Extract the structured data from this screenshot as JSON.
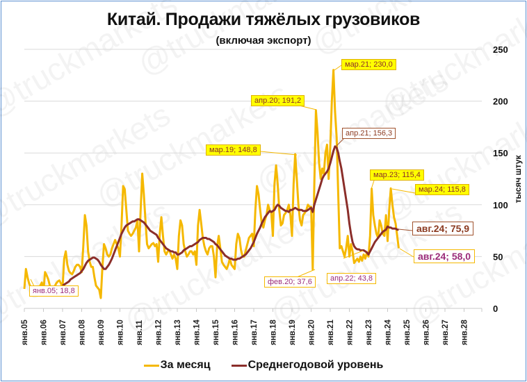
{
  "title": "Китай. Продажи тяжёлых грузовиков",
  "subtitle": "(включая экспорт)",
  "y_axis_title": "тысяч штук",
  "legend": [
    {
      "label": "За месяц",
      "color": "#f5b800"
    },
    {
      "label": "Среднегодовой уровень",
      "color": "#8b2e2a"
    }
  ],
  "watermark": "@truckmarkets",
  "annotations": {
    "jan05": "янв.05; 18,8",
    "feb20": "фев.20; 37,6",
    "mar19": "мар.19; 148,8",
    "apr20": "апр.20; 191,2",
    "mar21": "мар.21; 230,0",
    "apr21": "апр.21; 156,3",
    "apr22": "апр.22; 43,8",
    "mar23": "мар.23; 115,4",
    "mar24": "мар.24; 115,8",
    "aug24_avg": "авг.24; 75,9",
    "aug24_month": "авг.24; 58,0"
  },
  "chart_data": {
    "type": "line",
    "title": "Китай. Продажи тяжёлых грузовиков",
    "subtitle": "(включая экспорт)",
    "xlabel": "",
    "ylabel": "тысяч штук",
    "ylim": [
      0,
      250
    ],
    "yticks": [
      0,
      50,
      100,
      150,
      200,
      250
    ],
    "y_axis_position": "right",
    "grid": true,
    "legend_position": "bottom",
    "x_start": "янв.05",
    "x_ticks": [
      "янв.05",
      "янв.06",
      "янв.07",
      "янв.08",
      "янв.09",
      "янв.10",
      "янв.11",
      "янв.12",
      "янв.13",
      "янв.14",
      "янв.15",
      "янв.16",
      "янв.17",
      "янв.18",
      "янв.19",
      "янв.20",
      "янв.21",
      "янв.22",
      "янв.23",
      "янв.24",
      "янв.25",
      "янв.26",
      "янв.27",
      "янв.28"
    ],
    "series": [
      {
        "name": "За месяц",
        "color": "#f5b800",
        "frequency": "monthly",
        "start": "2005-01",
        "values": [
          18.8,
          38,
          30,
          24,
          20,
          18,
          17,
          16,
          18,
          20,
          22,
          25,
          16,
          35,
          32,
          28,
          22,
          20,
          20,
          21,
          24,
          26,
          27,
          24,
          20,
          48,
          55,
          42,
          36,
          34,
          33,
          36,
          40,
          42,
          42,
          40,
          35,
          60,
          90,
          80,
          55,
          45,
          40,
          40,
          30,
          22,
          20,
          18,
          10,
          40,
          62,
          58,
          52,
          50,
          52,
          58,
          62,
          66,
          62,
          58,
          50,
          80,
          118,
          115,
          95,
          75,
          72,
          70,
          72,
          75,
          78,
          85,
          55,
          95,
          130,
          110,
          85,
          62,
          58,
          60,
          62,
          63,
          60,
          62,
          45,
          72,
          88,
          70,
          55,
          52,
          55,
          56,
          52,
          48,
          52,
          48,
          38,
          70,
          85,
          80,
          62,
          55,
          50,
          52,
          55,
          55,
          52,
          55,
          42,
          80,
          95,
          82,
          68,
          60,
          55,
          52,
          58,
          60,
          60,
          50,
          30,
          60,
          70,
          58,
          45,
          42,
          40,
          38,
          42,
          48,
          42,
          40,
          38,
          62,
          72,
          68,
          56,
          50,
          50,
          56,
          62,
          68,
          70,
          72,
          60,
          95,
          118,
          110,
          95,
          82,
          78,
          85,
          90,
          100,
          95,
          92,
          70,
          120,
          138,
          120,
          95,
          80,
          82,
          90,
          92,
          95,
          100,
          90,
          70,
          120,
          148.8,
          125,
          100,
          85,
          80,
          90,
          92,
          95,
          100,
          98,
          98,
          37.6,
          120,
          191.2,
          170,
          140,
          125,
          135,
          130,
          150,
          158,
          125,
          155,
          200,
          230.0,
          190,
          165,
          110,
          58,
          60,
          55,
          50,
          58,
          70,
          50,
          62,
          55,
          43.8,
          46,
          48,
          45,
          50,
          46,
          52,
          48,
          54,
          50,
          70,
          115.4,
          90,
          80,
          72,
          68,
          85,
          80,
          72,
          70,
          90,
          65,
          95,
          115.8,
          100,
          88,
          82,
          70,
          58.0
        ]
      },
      {
        "name": "Среднегодовой уровень",
        "color": "#8b2e2a",
        "frequency": "monthly",
        "start": "2005-01",
        "values": [
          null,
          null,
          null,
          null,
          null,
          null,
          null,
          null,
          null,
          null,
          null,
          null,
          null,
          null,
          null,
          null,
          null,
          null,
          null,
          null,
          null,
          null,
          null,
          null,
          22,
          23,
          24,
          25,
          26,
          28,
          29,
          30,
          31,
          32,
          33,
          34,
          36,
          38,
          41,
          44,
          46,
          47,
          48,
          49,
          49,
          48,
          47,
          45,
          42,
          40,
          38,
          38,
          40,
          42,
          45,
          48,
          52,
          56,
          60,
          64,
          68,
          72,
          75,
          78,
          80,
          81,
          82,
          83,
          84,
          84,
          85,
          86,
          86,
          85,
          84,
          83,
          81,
          79,
          77,
          75,
          74,
          73,
          72,
          71,
          68,
          66,
          64,
          62,
          60,
          58,
          57,
          56,
          55,
          55,
          54,
          54,
          52,
          52,
          53,
          54,
          56,
          57,
          58,
          59,
          60,
          60,
          61,
          62,
          63,
          64,
          66,
          67,
          68,
          68,
          68,
          67,
          67,
          66,
          65,
          64,
          62,
          61,
          59,
          57,
          55,
          53,
          51,
          50,
          49,
          48,
          48,
          47,
          47,
          47,
          48,
          48,
          49,
          50,
          51,
          52,
          54,
          56,
          58,
          61,
          64,
          68,
          72,
          75,
          78,
          82,
          85,
          88,
          90,
          92,
          94,
          93,
          94,
          95,
          98,
          100,
          99,
          97,
          96,
          95,
          94,
          94,
          93,
          95,
          95,
          96,
          97,
          96,
          95,
          95,
          95,
          94,
          94,
          94,
          95,
          96,
          97,
          93,
          100,
          105,
          110,
          115,
          120,
          125,
          128,
          130,
          132,
          135,
          140,
          146,
          152,
          156.3,
          155,
          150,
          142,
          135,
          125,
          115,
          105,
          95,
          82,
          72,
          64,
          60,
          58,
          57,
          57,
          56,
          56,
          56,
          55,
          54,
          52,
          55,
          58,
          61,
          64,
          66,
          68,
          70,
          72,
          74,
          75,
          76,
          79,
          78,
          78,
          77,
          77,
          77,
          76,
          75.9
        ]
      }
    ],
    "annotations": [
      {
        "series": "За месяц",
        "x": "янв.05",
        "value": 18.8
      },
      {
        "series": "За месяц",
        "x": "фев.20",
        "value": 37.6
      },
      {
        "series": "За месяц",
        "x": "мар.19",
        "value": 148.8
      },
      {
        "series": "За месяц",
        "x": "апр.20",
        "value": 191.2
      },
      {
        "series": "За месяц",
        "x": "мар.21",
        "value": 230.0
      },
      {
        "series": "Среднегодовой уровень",
        "x": "апр.21",
        "value": 156.3
      },
      {
        "series": "За месяц",
        "x": "апр.22",
        "value": 43.8
      },
      {
        "series": "За месяц",
        "x": "мар.23",
        "value": 115.4
      },
      {
        "series": "За месяц",
        "x": "мар.24",
        "value": 115.8
      },
      {
        "series": "Среднегодовой уровень",
        "x": "авг.24",
        "value": 75.9
      },
      {
        "series": "За месяц",
        "x": "авг.24",
        "value": 58.0
      }
    ]
  }
}
